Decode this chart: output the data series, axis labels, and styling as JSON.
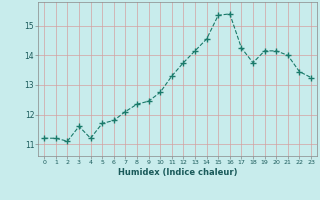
{
  "x": [
    0,
    1,
    2,
    3,
    4,
    5,
    6,
    7,
    8,
    9,
    10,
    11,
    12,
    13,
    14,
    15,
    16,
    17,
    18,
    19,
    20,
    21,
    22,
    23
  ],
  "y": [
    11.2,
    11.2,
    11.1,
    11.6,
    11.2,
    11.7,
    11.8,
    12.1,
    12.35,
    12.45,
    12.75,
    13.3,
    13.75,
    14.15,
    14.55,
    15.35,
    15.4,
    14.25,
    13.75,
    14.15,
    14.15,
    14.0,
    13.45,
    13.25
  ],
  "xlabel": "Humidex (Indice chaleur)",
  "bg_color": "#c8ecec",
  "grid_color": "#d4a0a0",
  "line_color": "#1a7a6a",
  "marker_size": 2.5,
  "ylim": [
    10.6,
    15.8
  ],
  "yticks": [
    11,
    12,
    13,
    14,
    15
  ],
  "xticks": [
    0,
    1,
    2,
    3,
    4,
    5,
    6,
    7,
    8,
    9,
    10,
    11,
    12,
    13,
    14,
    15,
    16,
    17,
    18,
    19,
    20,
    21,
    22,
    23
  ]
}
